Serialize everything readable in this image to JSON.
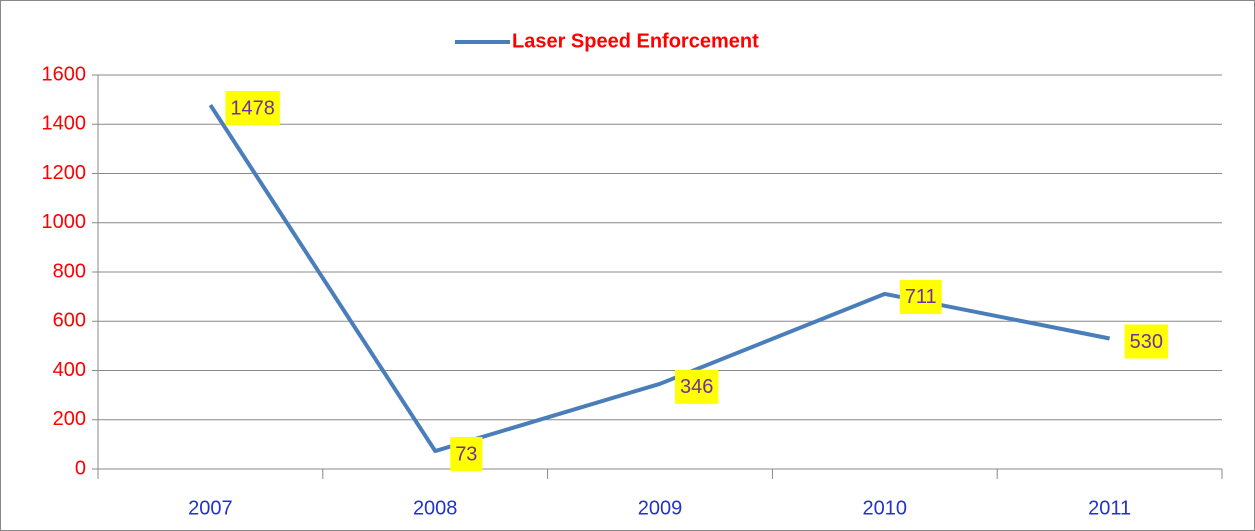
{
  "chart_data": {
    "type": "line",
    "categories": [
      "2007",
      "2008",
      "2009",
      "2010",
      "2011"
    ],
    "series": [
      {
        "name": "Laser Speed Enforcement",
        "color": "#4a7ebb",
        "values": [
          1478,
          73,
          346,
          711,
          530
        ]
      }
    ],
    "ylim": [
      0,
      1600
    ],
    "yticks": [
      0,
      200,
      400,
      600,
      800,
      1000,
      1200,
      1400,
      1600
    ],
    "grid": true,
    "legend": "top",
    "label_color": "#7030a0",
    "label_background": "#ffff00",
    "ytick_color": "#ff0000",
    "xtick_color": "#2233cc",
    "legend_text_color": "#ff0000"
  }
}
